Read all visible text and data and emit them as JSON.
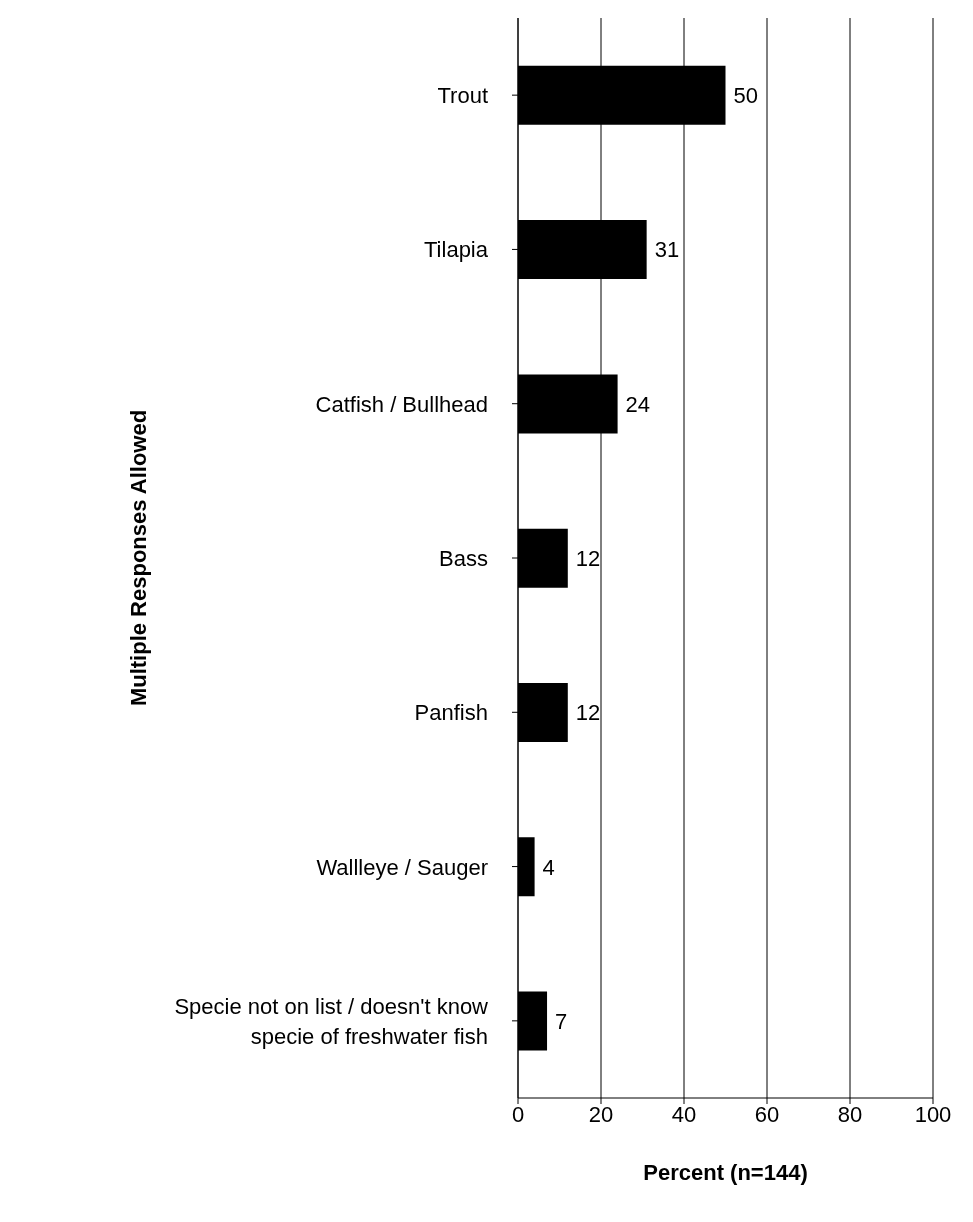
{
  "chart_data": {
    "type": "bar",
    "orientation": "horizontal",
    "xlabel": "Percent (n=144)",
    "ylabel": "Multiple Responses Allowed",
    "categories": [
      "Trout",
      "Tilapia",
      "Catfish / Bullhead",
      "Bass",
      "Panfish",
      "Wallleye / Sauger",
      "Specie not on list / doesn't know specie of freshwater fish"
    ],
    "values": [
      50,
      31,
      24,
      12,
      12,
      4,
      7
    ],
    "color": "#000000",
    "data_labels": true,
    "xlim": [
      0,
      100
    ],
    "xticks": [
      0,
      20,
      40,
      60,
      80,
      100
    ],
    "grid": "x"
  }
}
